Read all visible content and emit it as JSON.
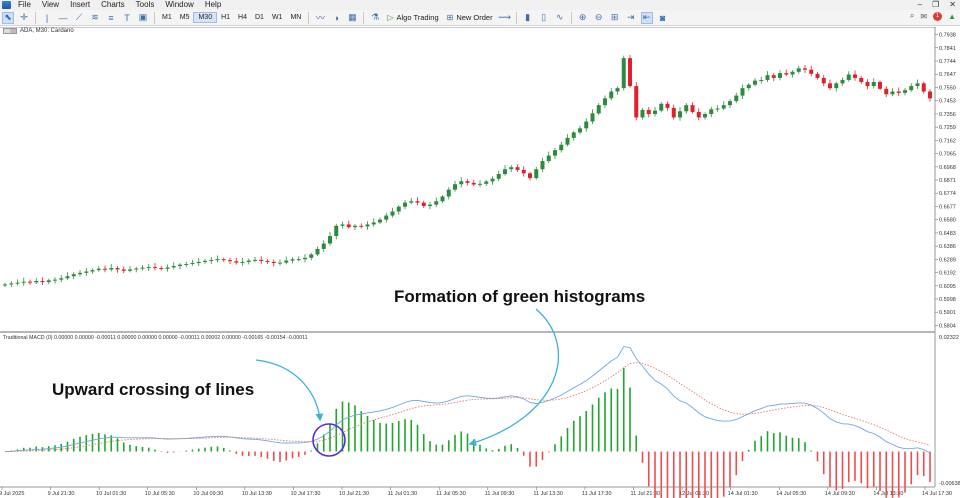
{
  "menu": [
    "File",
    "View",
    "Insert",
    "Charts",
    "Tools",
    "Window",
    "Help"
  ],
  "timeframes": [
    "M1",
    "M5",
    "M30",
    "H1",
    "H4",
    "D1",
    "W1",
    "MN"
  ],
  "active_timeframe": "M30",
  "toolbar": {
    "algo_trading": "Algo Trading",
    "new_order": "New Order",
    "notification_count": "1"
  },
  "chart": {
    "symbol_label": "ADA, M30:  Cardano",
    "indicator_label": "Traditional MACD (0) 0.00000 0.00000 -0.00011 0.00000 0.00000 0.00000 -0.00011 0.00002 0.00000 -0.00165 -0.00154 -0.00011"
  },
  "annotations": {
    "green_histograms": "Formation of green histograms",
    "upward_crossing": "Upward crossing of lines"
  },
  "colors": {
    "bull": "#2e8b3e",
    "bear": "#e0202a",
    "macd_line": "#6fa8dc",
    "signal_line": "#e07b6a",
    "circle": "#5b2bd6",
    "arrow": "#3ab3d4"
  },
  "chart_data": {
    "type": "candlestick",
    "y_ticks": [
      "0.7938",
      "0.7841",
      "0.7744",
      "0.7647",
      "0.7550",
      "0.7453",
      "0.7356",
      "0.7259",
      "0.7162",
      "0.7065",
      "0.6968",
      "0.6871",
      "0.6774",
      "0.6677",
      "0.6580",
      "0.6483",
      "0.6386",
      "0.6289",
      "0.6192",
      "0.6095",
      "0.5998",
      "0.5901",
      "0.5804"
    ],
    "ylim": [
      0.5756,
      0.7986
    ],
    "macd_ticks": [
      "0.02322",
      "-0.00638"
    ],
    "macd_ylim": [
      -0.00638,
      0.02322
    ],
    "x_ticks": [
      "9 Jul 2025",
      "9 Jul 21:30",
      "10 Jul 01:30",
      "10 Jul 05:30",
      "10 Jul 09:30",
      "10 Jul 13:30",
      "10 Jul 17:30",
      "10 Jul 21:30",
      "11 Jul 01:30",
      "11 Jul 05:30",
      "11 Jul 09:30",
      "11 Jul 13:30",
      "11 Jul 17:30",
      "11 Jul 21:30",
      "12 Jul 01:30",
      "14 Jul 01:30",
      "14 Jul 05:30",
      "14 Jul 09:30",
      "14 Jul 13:30",
      "14 Jul 17:30"
    ],
    "close": [
      0.6105,
      0.6112,
      0.6118,
      0.6125,
      0.612,
      0.613,
      0.6122,
      0.6135,
      0.614,
      0.615,
      0.6165,
      0.618,
      0.619,
      0.62,
      0.621,
      0.622,
      0.6215,
      0.6225,
      0.6215,
      0.6205,
      0.6215,
      0.6222,
      0.6228,
      0.6232,
      0.6225,
      0.622,
      0.623,
      0.624,
      0.625,
      0.6255,
      0.6262,
      0.627,
      0.6278,
      0.6285,
      0.629,
      0.6283,
      0.6275,
      0.6265,
      0.627,
      0.628,
      0.6285,
      0.6277,
      0.627,
      0.6262,
      0.6265,
      0.628,
      0.629,
      0.629,
      0.63,
      0.6325,
      0.6365,
      0.6405,
      0.646,
      0.6535,
      0.6545,
      0.6525,
      0.6535,
      0.653,
      0.6545,
      0.656,
      0.658,
      0.661,
      0.664,
      0.6675,
      0.6705,
      0.6715,
      0.6705,
      0.668,
      0.669,
      0.6715,
      0.675,
      0.68,
      0.684,
      0.6862,
      0.685,
      0.6838,
      0.6843,
      0.686,
      0.688,
      0.6915,
      0.695,
      0.6965,
      0.6945,
      0.692,
      0.6885,
      0.695,
      0.701,
      0.705,
      0.709,
      0.713,
      0.718,
      0.722,
      0.725,
      0.73,
      0.736,
      0.742,
      0.747,
      0.752,
      0.7545,
      0.7765,
      0.756,
      0.733,
      0.7385,
      0.7355,
      0.738,
      0.743,
      0.74,
      0.733,
      0.7375,
      0.742,
      0.737,
      0.733,
      0.7355,
      0.739,
      0.7395,
      0.742,
      0.745,
      0.749,
      0.7545,
      0.757,
      0.76,
      0.7605,
      0.764,
      0.762,
      0.7655,
      0.7645,
      0.7665,
      0.769,
      0.768,
      0.765,
      0.762,
      0.758,
      0.7545,
      0.758,
      0.7605,
      0.7645,
      0.762,
      0.759,
      0.756,
      0.759,
      0.754,
      0.75,
      0.752,
      0.751,
      0.753,
      0.756,
      0.758,
      0.752,
      0.747
    ]
  }
}
